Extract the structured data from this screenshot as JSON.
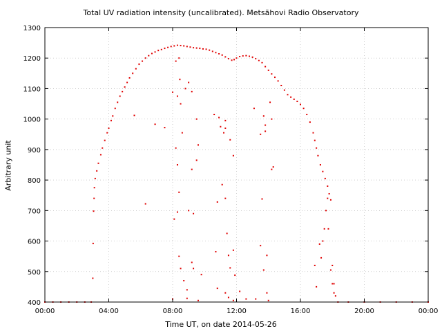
{
  "chart_data": {
    "type": "scatter",
    "title": "Total UV radiation intensity (uncalibrated). Metsähovi Radio Observatory",
    "xlabel": "Time UT, on date 2014-05-26",
    "ylabel": "Arbitrary unit",
    "x_unit": "hours UT",
    "xlim": [
      0,
      24
    ],
    "ylim": [
      400,
      1300
    ],
    "x_ticks": [
      0,
      4,
      8,
      12,
      16,
      20,
      24
    ],
    "x_tick_labels": [
      "00:00",
      "04:00",
      "08:00",
      "12:00",
      "16:00",
      "20:00",
      "00:00"
    ],
    "y_ticks": [
      400,
      500,
      600,
      700,
      800,
      900,
      1000,
      1100,
      1200,
      1300
    ],
    "y_tick_labels": [
      "400",
      "500",
      "600",
      "700",
      "800",
      "900",
      "1000",
      "1100",
      "1200",
      "1300"
    ],
    "grid": true,
    "marker_color": "#e00000",
    "series": [
      {
        "name": "",
        "points": [
          [
            0.0,
            400
          ],
          [
            0.5,
            400
          ],
          [
            1.0,
            400
          ],
          [
            1.5,
            400
          ],
          [
            2.0,
            400
          ],
          [
            2.5,
            400
          ],
          [
            2.9,
            400
          ],
          [
            3.0,
            478
          ],
          [
            3.02,
            592
          ],
          [
            3.05,
            698
          ],
          [
            3.08,
            740
          ],
          [
            3.1,
            775
          ],
          [
            3.15,
            805
          ],
          [
            3.25,
            830
          ],
          [
            3.35,
            855
          ],
          [
            3.5,
            883
          ],
          [
            3.6,
            905
          ],
          [
            3.75,
            930
          ],
          [
            3.9,
            955
          ],
          [
            4.0,
            970
          ],
          [
            4.15,
            995
          ],
          [
            4.25,
            1010
          ],
          [
            4.4,
            1035
          ],
          [
            4.55,
            1055
          ],
          [
            4.7,
            1075
          ],
          [
            4.85,
            1090
          ],
          [
            5.0,
            1105
          ],
          [
            5.15,
            1120
          ],
          [
            5.3,
            1135
          ],
          [
            5.5,
            1150
          ],
          [
            5.7,
            1165
          ],
          [
            5.9,
            1180
          ],
          [
            6.1,
            1190
          ],
          [
            6.3,
            1200
          ],
          [
            6.5,
            1208
          ],
          [
            6.7,
            1215
          ],
          [
            6.9,
            1220
          ],
          [
            7.1,
            1225
          ],
          [
            7.3,
            1228
          ],
          [
            7.5,
            1232
          ],
          [
            7.7,
            1235
          ],
          [
            7.9,
            1238
          ],
          [
            8.1,
            1240
          ],
          [
            8.3,
            1242
          ],
          [
            8.5,
            1241
          ],
          [
            8.7,
            1240
          ],
          [
            8.9,
            1238
          ],
          [
            9.1,
            1236
          ],
          [
            9.3,
            1234
          ],
          [
            9.5,
            1233
          ],
          [
            9.7,
            1232
          ],
          [
            9.9,
            1230
          ],
          [
            10.1,
            1229
          ],
          [
            10.3,
            1226
          ],
          [
            10.5,
            1222
          ],
          [
            10.7,
            1218
          ],
          [
            10.9,
            1214
          ],
          [
            11.1,
            1210
          ],
          [
            11.3,
            1204
          ],
          [
            11.5,
            1198
          ],
          [
            11.7,
            1193
          ],
          [
            11.85,
            1195
          ],
          [
            12.0,
            1200
          ],
          [
            12.2,
            1205
          ],
          [
            12.4,
            1207
          ],
          [
            12.6,
            1208
          ],
          [
            12.8,
            1206
          ],
          [
            13.0,
            1203
          ],
          [
            13.2,
            1198
          ],
          [
            13.4,
            1192
          ],
          [
            13.6,
            1185
          ],
          [
            13.8,
            1172
          ],
          [
            14.0,
            1160
          ],
          [
            14.2,
            1148
          ],
          [
            14.4,
            1137
          ],
          [
            14.6,
            1125
          ],
          [
            14.8,
            1110
          ],
          [
            15.0,
            1095
          ],
          [
            15.2,
            1080
          ],
          [
            15.4,
            1072
          ],
          [
            15.6,
            1065
          ],
          [
            15.8,
            1058
          ],
          [
            16.0,
            1048
          ],
          [
            16.2,
            1035
          ],
          [
            16.4,
            1015
          ],
          [
            16.6,
            990
          ],
          [
            16.8,
            955
          ],
          [
            16.9,
            930
          ],
          [
            17.0,
            905
          ],
          [
            17.1,
            880
          ],
          [
            17.25,
            850
          ],
          [
            17.4,
            828
          ],
          [
            17.55,
            805
          ],
          [
            17.7,
            780
          ],
          [
            17.8,
            755
          ],
          [
            17.9,
            735
          ],
          [
            18.0,
            520
          ],
          [
            18.1,
            460
          ],
          [
            18.2,
            420
          ],
          [
            18.35,
            400
          ],
          [
            19.0,
            400
          ],
          [
            20.0,
            400
          ],
          [
            21.0,
            400
          ],
          [
            22.0,
            400
          ],
          [
            23.0,
            400
          ],
          [
            24.0,
            400
          ],
          [
            5.6,
            1012
          ],
          [
            6.3,
            722
          ],
          [
            6.9,
            983
          ],
          [
            7.5,
            972
          ],
          [
            8.0,
            1088
          ],
          [
            8.2,
            1190
          ],
          [
            8.3,
            1075
          ],
          [
            8.4,
            1200
          ],
          [
            8.45,
            1130
          ],
          [
            8.5,
            1050
          ],
          [
            8.6,
            955
          ],
          [
            8.2,
            905
          ],
          [
            8.3,
            850
          ],
          [
            8.4,
            760
          ],
          [
            8.3,
            695
          ],
          [
            8.1,
            672
          ],
          [
            8.4,
            550
          ],
          [
            8.5,
            510
          ],
          [
            8.7,
            470
          ],
          [
            8.9,
            440
          ],
          [
            8.0,
            410
          ],
          [
            8.8,
            1100
          ],
          [
            9.0,
            1120
          ],
          [
            9.2,
            1090
          ],
          [
            9.5,
            1000
          ],
          [
            9.6,
            915
          ],
          [
            9.5,
            865
          ],
          [
            9.2,
            835
          ],
          [
            9.0,
            700
          ],
          [
            9.3,
            690
          ],
          [
            9.2,
            530
          ],
          [
            9.3,
            510
          ],
          [
            8.9,
            412
          ],
          [
            9.6,
            405
          ],
          [
            9.8,
            490
          ],
          [
            10.6,
            1015
          ],
          [
            10.9,
            1005
          ],
          [
            11.3,
            995
          ],
          [
            11.0,
            975
          ],
          [
            11.3,
            970
          ],
          [
            11.2,
            955
          ],
          [
            11.6,
            932
          ],
          [
            11.8,
            880
          ],
          [
            10.8,
            728
          ],
          [
            11.1,
            785
          ],
          [
            11.3,
            740
          ],
          [
            11.4,
            625
          ],
          [
            10.7,
            565
          ],
          [
            11.5,
            553
          ],
          [
            11.8,
            570
          ],
          [
            11.6,
            512
          ],
          [
            11.9,
            488
          ],
          [
            10.8,
            445
          ],
          [
            11.3,
            430
          ],
          [
            11.5,
            415
          ],
          [
            11.8,
            405
          ],
          [
            12.2,
            435
          ],
          [
            12.6,
            410
          ],
          [
            13.1,
            1035
          ],
          [
            13.5,
            950
          ],
          [
            13.7,
            1010
          ],
          [
            13.8,
            980
          ],
          [
            13.8,
            960
          ],
          [
            14.1,
            1055
          ],
          [
            14.2,
            1000
          ],
          [
            14.3,
            843
          ],
          [
            14.2,
            835
          ],
          [
            13.6,
            738
          ],
          [
            13.5,
            585
          ],
          [
            13.9,
            553
          ],
          [
            13.7,
            505
          ],
          [
            13.9,
            430
          ],
          [
            13.2,
            410
          ],
          [
            14.0,
            405
          ],
          [
            16.9,
            520
          ],
          [
            17.0,
            450
          ],
          [
            17.3,
            545
          ],
          [
            17.4,
            600
          ],
          [
            17.5,
            640
          ],
          [
            17.6,
            700
          ],
          [
            17.7,
            740
          ],
          [
            17.75,
            640
          ],
          [
            17.2,
            590
          ],
          [
            18.0,
            460
          ],
          [
            18.1,
            430
          ],
          [
            17.9,
            505
          ]
        ]
      }
    ]
  }
}
